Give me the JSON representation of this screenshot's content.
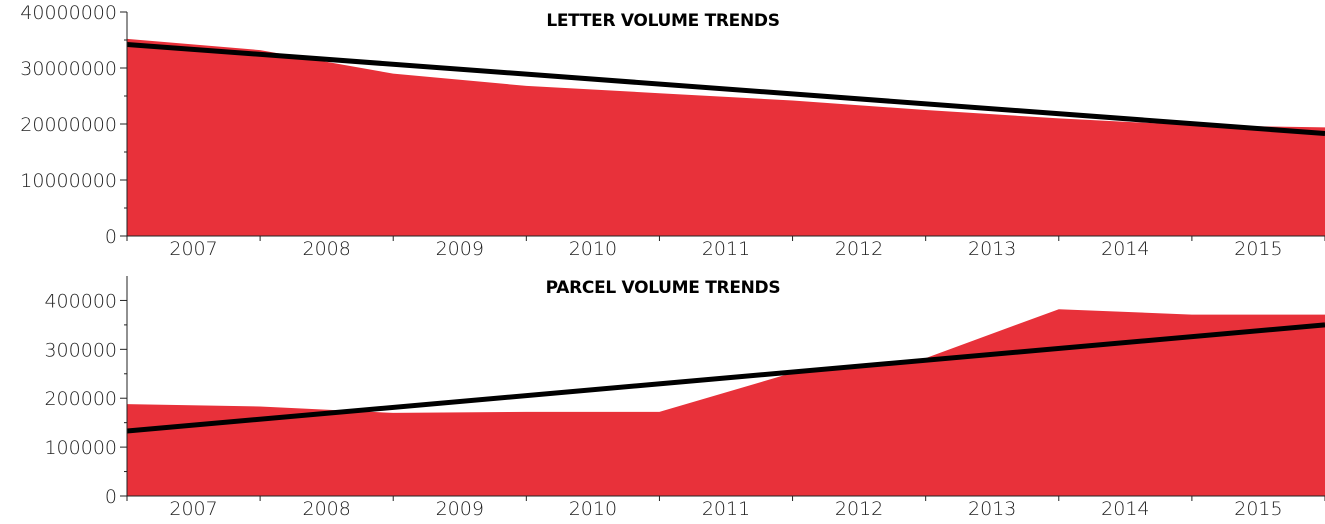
{
  "colors": {
    "area": "#e8313a",
    "trend": "#000000",
    "axis": "#222222",
    "background": "#ffffff"
  },
  "chart_data": [
    {
      "type": "area",
      "title": "LETTER VOLUME TRENDS",
      "categories": [
        "2007",
        "2008",
        "2009",
        "2010",
        "2011",
        "2012",
        "2013",
        "2014",
        "2015"
      ],
      "x": [
        2006.9,
        2007.9,
        2008.9,
        2009.9,
        2010.9,
        2011.9,
        2012.9,
        2013.9,
        2014.9,
        2015.9
      ],
      "series": [
        {
          "values": [
            35200000,
            33200000,
            29000000,
            26800000,
            25500000,
            24200000,
            22500000,
            21000000,
            19800000,
            19400000
          ]
        }
      ],
      "trendline": {
        "start": 34200000,
        "end": 18300000
      },
      "ylim": [
        0,
        40000000
      ],
      "yticks": [
        "0",
        "10000000",
        "20000000",
        "30000000",
        "40000000"
      ],
      "ytick_values": [
        0,
        10000000,
        20000000,
        30000000,
        40000000
      ],
      "xlabel": "",
      "ylabel": "",
      "grid": false
    },
    {
      "type": "area",
      "title": "PARCEL VOLUME TRENDS",
      "categories": [
        "2007",
        "2008",
        "2009",
        "2010",
        "2011",
        "2012",
        "2013",
        "2014",
        "2015"
      ],
      "x": [
        2006.9,
        2007.9,
        2008.9,
        2009.9,
        2010.9,
        2011.9,
        2012.9,
        2013.9,
        2014.9,
        2015.9
      ],
      "series": [
        {
          "values": [
            188000,
            183000,
            170000,
            172000,
            172000,
            252000,
            282000,
            382000,
            371000,
            371000
          ]
        }
      ],
      "trendline": {
        "start": 133000,
        "end": 350000
      },
      "ylim": [
        0,
        450000
      ],
      "yticks": [
        "0",
        "100000",
        "200000",
        "300000",
        "400000"
      ],
      "ytick_values": [
        0,
        100000,
        200000,
        300000,
        400000
      ],
      "xlabel": "",
      "ylabel": "",
      "grid": false
    }
  ]
}
